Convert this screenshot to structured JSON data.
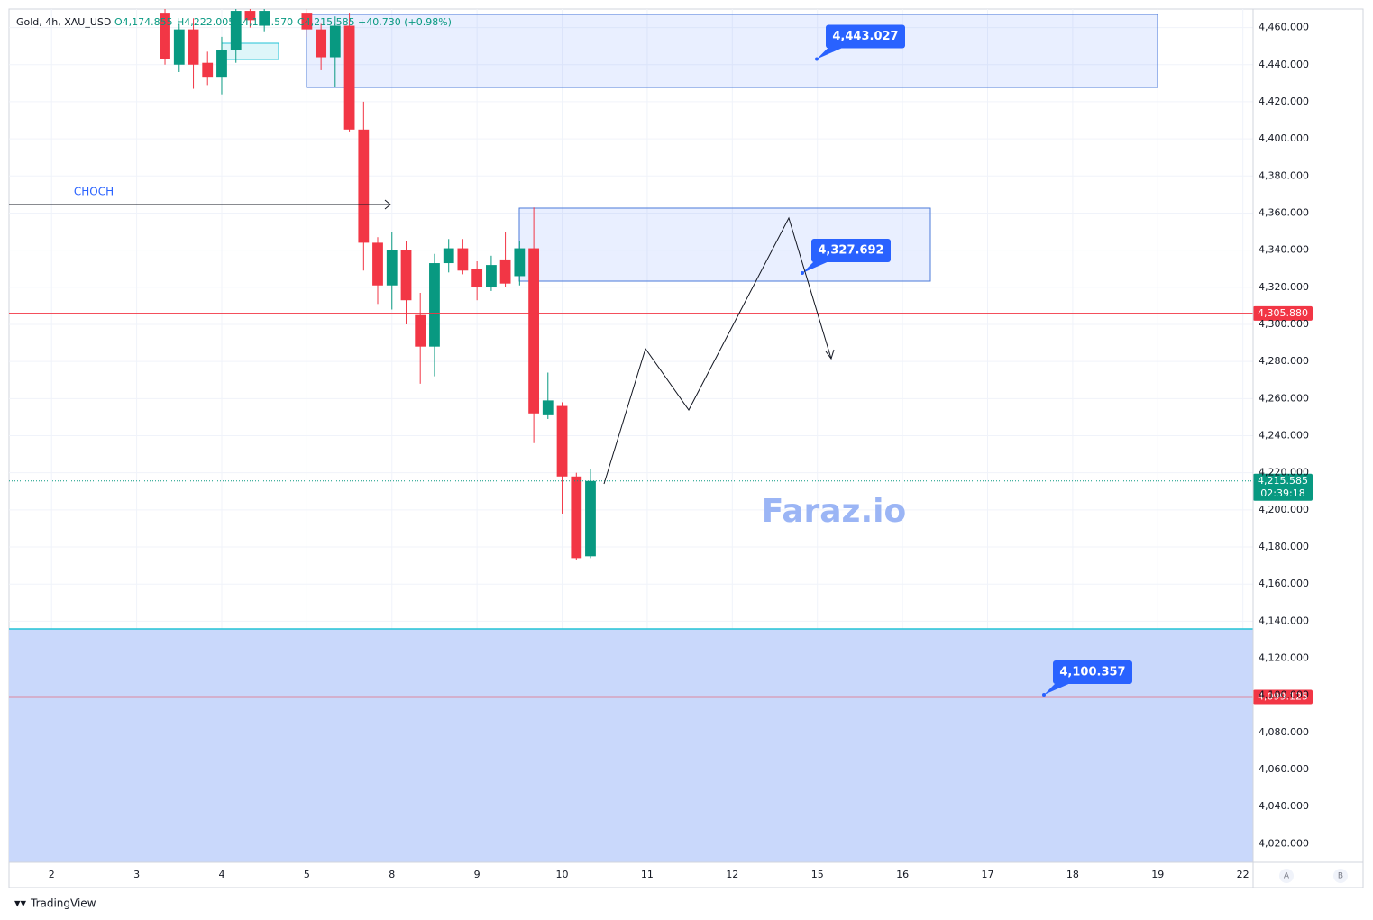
{
  "chart_data": {
    "type": "candlestick",
    "header": {
      "symbol": "Gold, 4h, XAU_USD",
      "open": "O4,174.855",
      "high": "H4,222.005",
      "low": "L4,173.570",
      "close": "C4,215.585",
      "change": "+40.730 (+0.98%)"
    },
    "watermark": "Faraz.io",
    "annotation_text": "CHOCH",
    "brand": "TradingView",
    "axis_buttons": [
      "A",
      "B"
    ],
    "up_color": "#089981",
    "down_color": "#f23645",
    "xlim": [
      -0.5,
      14.12
    ],
    "xticks": [
      {
        "value": 0,
        "label": "2"
      },
      {
        "value": 1,
        "label": "3"
      },
      {
        "value": 2,
        "label": "4"
      },
      {
        "value": 3,
        "label": "5"
      },
      {
        "value": 4,
        "label": "8"
      },
      {
        "value": 5,
        "label": "9"
      },
      {
        "value": 6,
        "label": "10"
      },
      {
        "value": 7,
        "label": "11"
      },
      {
        "value": 8,
        "label": "12"
      },
      {
        "value": 9,
        "label": "15"
      },
      {
        "value": 10,
        "label": "16"
      },
      {
        "value": 11,
        "label": "17"
      },
      {
        "value": 12,
        "label": "18"
      },
      {
        "value": 13,
        "label": "19"
      },
      {
        "value": 14,
        "label": "22"
      }
    ],
    "ylim": [
      4010,
      4470
    ],
    "yticks": [
      {
        "value": 4020,
        "label": "4,020.000"
      },
      {
        "value": 4040,
        "label": "4,040.000"
      },
      {
        "value": 4060,
        "label": "4,060.000"
      },
      {
        "value": 4080,
        "label": "4,080.000"
      },
      {
        "value": 4100,
        "label": "4,100.000"
      },
      {
        "value": 4120,
        "label": "4,120.000"
      },
      {
        "value": 4140,
        "label": "4,140.000"
      },
      {
        "value": 4160,
        "label": "4,160.000"
      },
      {
        "value": 4180,
        "label": "4,180.000"
      },
      {
        "value": 4200,
        "label": "4,200.000"
      },
      {
        "value": 4220,
        "label": "4,220.000"
      },
      {
        "value": 4240,
        "label": "4,240.000"
      },
      {
        "value": 4260,
        "label": "4,260.000"
      },
      {
        "value": 4280,
        "label": "4,280.000"
      },
      {
        "value": 4300,
        "label": "4,300.000"
      },
      {
        "value": 4320,
        "label": "4,320.000"
      },
      {
        "value": 4340,
        "label": "4,340.000"
      },
      {
        "value": 4360,
        "label": "4,360.000"
      },
      {
        "value": 4380,
        "label": "4,380.000"
      },
      {
        "value": 4400,
        "label": "4,400.000"
      },
      {
        "value": 4420,
        "label": "4,420.000"
      },
      {
        "value": 4440,
        "label": "4,440.000"
      },
      {
        "value": 4460,
        "label": "4,460.000"
      }
    ],
    "grid": true,
    "x": [
      1.333,
      1.5,
      1.667,
      1.833,
      2.0,
      2.167,
      2.333,
      2.5,
      3.0,
      3.167,
      3.333,
      3.5,
      3.667,
      3.833,
      4.0,
      4.167,
      4.333,
      4.5,
      4.667,
      4.833,
      5.0,
      5.167,
      5.333,
      5.5,
      5.667,
      5.833,
      6.0,
      6.167,
      6.333
    ],
    "open": [
      4468,
      4440,
      4459,
      4441,
      4433,
      4448,
      4469,
      4461,
      4468,
      4459,
      4444,
      4461,
      4405,
      4344,
      4321,
      4340,
      4305,
      4288,
      4333,
      4341,
      4330,
      4320,
      4335,
      4326,
      4341,
      4251,
      4256,
      4218,
      4175
    ],
    "high": [
      4470,
      4462,
      4465,
      4447,
      4455,
      4470,
      4470,
      4470,
      4470,
      4462,
      4466,
      4468,
      4420,
      4347,
      4350,
      4345,
      4317,
      4338,
      4346,
      4346,
      4334,
      4337,
      4350,
      4345,
      4363,
      4274,
      4258,
      4220,
      4222
    ],
    "low": [
      4440,
      4436,
      4427,
      4429,
      4424,
      4441,
      4460,
      4458,
      4455,
      4437,
      4428,
      4404,
      4329,
      4311,
      4308,
      4300,
      4268,
      4272,
      4328,
      4327,
      4313,
      4318,
      4320,
      4321,
      4236,
      4249,
      4198,
      4173,
      4174
    ],
    "close": [
      4443,
      4459,
      4440,
      4433,
      4448,
      4469,
      4464,
      4469,
      4459,
      4444,
      4461,
      4405,
      4344,
      4321,
      4340,
      4313,
      4288,
      4333,
      4341,
      4329,
      4320,
      4332,
      4322,
      4341,
      4252,
      4259,
      4218,
      4174,
      4215.585
    ],
    "price_lines": [
      {
        "value": 4305.88,
        "label": "4,305.880",
        "color": "#f23645"
      },
      {
        "value": 4099.125,
        "label": "4,099.125",
        "color": "#f23645"
      }
    ],
    "last_price": {
      "value": 4215.585,
      "label": "4,215.585",
      "countdown": "02:39:18",
      "color": "#089981"
    },
    "callouts": [
      {
        "value": 4443.027,
        "label": "4,443.027"
      },
      {
        "value": 4327.692,
        "label": "4,327.692"
      },
      {
        "value": 4100.357,
        "label": "4,100.357"
      }
    ]
  }
}
